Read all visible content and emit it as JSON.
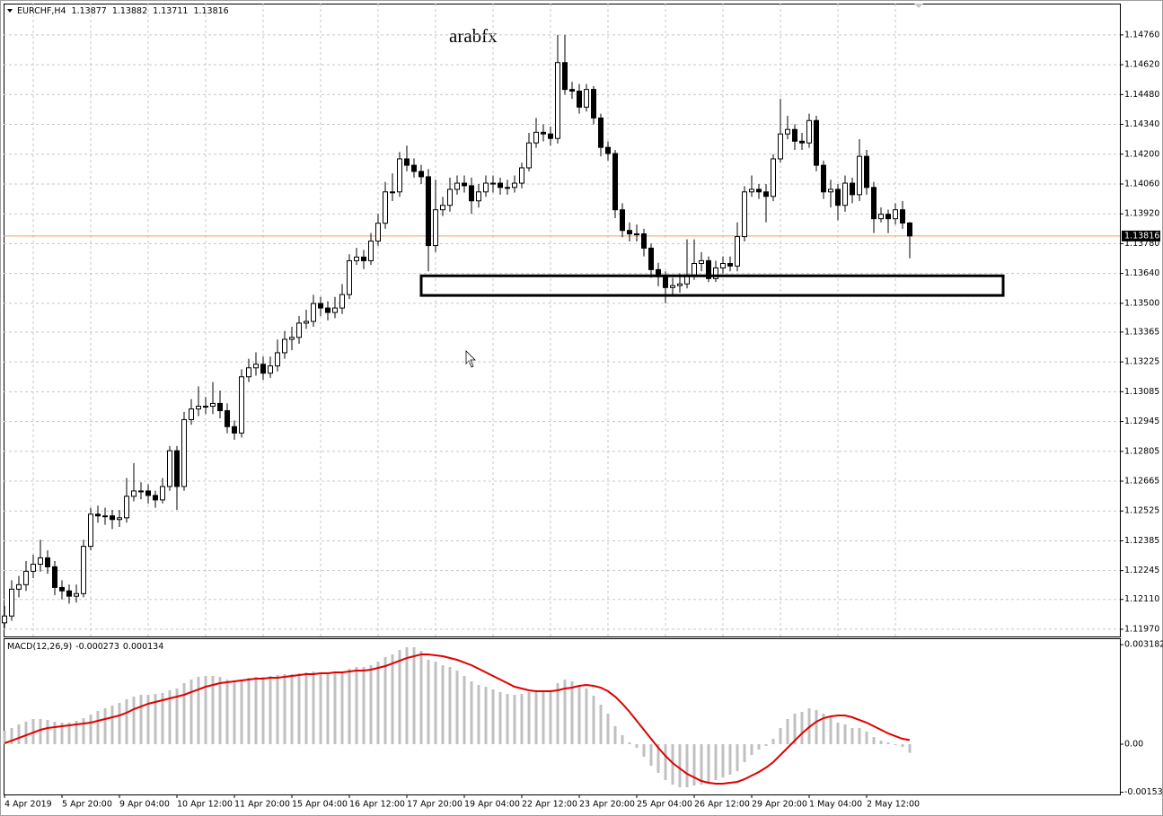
{
  "chart_data": [
    {
      "type": "candlestick",
      "title": "EURCHF,H4",
      "annotation": "arabfx",
      "categories": [
        "4 Apr 2019",
        null,
        null,
        null,
        null,
        null,
        null,
        null,
        "5 Apr 20:00",
        null,
        null,
        null,
        null,
        null,
        null,
        null,
        "9 Apr 04:00",
        null,
        null,
        null,
        null,
        null,
        null,
        null,
        "10 Apr 12:00",
        null,
        null,
        null,
        null,
        null,
        null,
        null,
        "11 Apr 20:00",
        null,
        null,
        null,
        null,
        null,
        null,
        null,
        "15 Apr 04:00",
        null,
        null,
        null,
        null,
        null,
        null,
        null,
        "16 Apr 12:00",
        null,
        null,
        null,
        null,
        null,
        null,
        null,
        "17 Apr 20:00",
        null,
        null,
        null,
        null,
        null,
        null,
        null,
        "19 Apr 04:00",
        null,
        null,
        null,
        null,
        null,
        null,
        null,
        "22 Apr 12:00",
        null,
        null,
        null,
        null,
        null,
        null,
        null,
        "23 Apr 20:00",
        null,
        null,
        null,
        null,
        null,
        null,
        null,
        "25 Apr 04:00",
        null,
        null,
        null,
        null,
        null,
        null,
        null,
        "26 Apr 12:00",
        null,
        null,
        null,
        null,
        null,
        null,
        null,
        "29 Apr 20:00",
        null,
        null,
        null,
        null,
        null,
        null,
        null,
        "1 May 04:00",
        null,
        null,
        null,
        null,
        null,
        null,
        null,
        "2 May 12:00",
        null,
        null,
        null,
        null,
        null,
        null
      ],
      "open": [
        1.12,
        1.12032,
        1.12158,
        1.12179,
        1.12242,
        1.12275,
        1.12305,
        1.12263,
        1.12166,
        1.1215,
        1.12125,
        1.12137,
        1.12359,
        1.1251,
        1.12502,
        1.12502,
        1.12485,
        1.12493,
        1.12594,
        1.12619,
        1.12619,
        1.12598,
        1.12577,
        1.1264,
        1.12808,
        1.1264,
        1.12954,
        1.13004,
        1.13017,
        1.13017,
        1.1303,
        1.12996,
        1.12921,
        1.12891,
        1.13155,
        1.13197,
        1.13214,
        1.13172,
        1.13206,
        1.13268,
        1.13331,
        1.1334,
        1.13407,
        1.13415,
        1.13499,
        1.13478,
        1.13457,
        1.13478,
        1.13541,
        1.137,
        1.13717,
        1.137,
        1.13792,
        1.13876,
        1.14023,
        1.14023,
        1.14178,
        1.14148,
        1.14119,
        1.14094,
        1.13771,
        1.13939,
        1.1396,
        1.14035,
        1.14064,
        1.14052,
        1.13981,
        1.14023,
        1.14064,
        1.14064,
        1.14044,
        1.14044,
        1.14064,
        1.14136,
        1.14253,
        1.14303,
        1.14295,
        1.14274,
        1.1463,
        1.14504,
        1.14496,
        1.14421,
        1.14504,
        1.1437,
        1.14232,
        1.14203,
        1.13939,
        1.13842,
        1.13826,
        1.13826,
        1.13759,
        1.13658,
        1.13625,
        1.13574,
        1.13583,
        1.13591,
        1.13633,
        1.13687,
        1.137,
        1.13616,
        1.13666,
        1.13687,
        1.13675,
        1.13813,
        1.14023,
        1.14035,
        1.14023,
        1.14002,
        1.14178,
        1.14295,
        1.14316,
        1.14261,
        1.14253,
        1.14358,
        1.14148,
        1.14023,
        1.14035,
        1.1396,
        1.14064,
        1.1401,
        1.1419,
        1.14044,
        1.13897,
        1.13918,
        1.13897,
        1.13939,
        1.13877
      ],
      "high": [
        1.1208,
        1.122,
        1.1222,
        1.1229,
        1.1232,
        1.1239,
        1.1234,
        1.1229,
        1.122,
        1.1218,
        1.1218,
        1.1239,
        1.1254,
        1.1255,
        1.1254,
        1.1253,
        1.1253,
        1.1268,
        1.1275,
        1.1266,
        1.1265,
        1.1262,
        1.1268,
        1.1283,
        1.1283,
        1.1299,
        1.1305,
        1.1311,
        1.1306,
        1.1313,
        1.1309,
        1.1303,
        1.1295,
        1.1319,
        1.1324,
        1.1327,
        1.1325,
        1.1325,
        1.1333,
        1.1337,
        1.1339,
        1.1344,
        1.1347,
        1.1354,
        1.1353,
        1.1351,
        1.1353,
        1.1359,
        1.1373,
        1.1376,
        1.1375,
        1.1383,
        1.1392,
        1.1407,
        1.1411,
        1.1421,
        1.1424,
        1.1418,
        1.1415,
        1.1413,
        1.1408,
        1.14,
        1.1409,
        1.141,
        1.141,
        1.1409,
        1.1406,
        1.141,
        1.141,
        1.1409,
        1.1408,
        1.141,
        1.1416,
        1.143,
        1.1437,
        1.1434,
        1.1433,
        1.1476,
        1.1476,
        1.1454,
        1.1453,
        1.1453,
        1.1452,
        1.1439,
        1.1426,
        1.1422,
        1.1397,
        1.1388,
        1.1387,
        1.1385,
        1.1378,
        1.1369,
        1.1365,
        1.1362,
        1.1364,
        1.138,
        1.138,
        1.1374,
        1.1372,
        1.137,
        1.1372,
        1.1372,
        1.1388,
        1.1405,
        1.141,
        1.1406,
        1.1406,
        1.142,
        1.1446,
        1.1438,
        1.1434,
        1.143,
        1.1439,
        1.1438,
        1.1417,
        1.1408,
        1.1406,
        1.141,
        1.1409,
        1.1427,
        1.1422,
        1.1407,
        1.1395,
        1.1394,
        1.1397,
        1.1398,
        1.13882
      ],
      "low": [
        1.11975,
        1.1201,
        1.1212,
        1.1215,
        1.1221,
        1.1224,
        1.1223,
        1.1213,
        1.1211,
        1.1209,
        1.12095,
        1.1212,
        1.1234,
        1.1247,
        1.1246,
        1.1244,
        1.1245,
        1.1247,
        1.1257,
        1.1258,
        1.1256,
        1.1254,
        1.1256,
        1.1262,
        1.1253,
        1.1262,
        1.1293,
        1.1297,
        1.1298,
        1.1298,
        1.1296,
        1.1289,
        1.1286,
        1.1287,
        1.1313,
        1.1316,
        1.1314,
        1.1315,
        1.1318,
        1.1324,
        1.1328,
        1.1331,
        1.1338,
        1.1339,
        1.1344,
        1.1342,
        1.1343,
        1.1345,
        1.1352,
        1.1368,
        1.1366,
        1.1368,
        1.1377,
        1.1385,
        1.1398,
        1.14,
        1.1412,
        1.1409,
        1.1406,
        1.1365,
        1.1374,
        1.1391,
        1.1393,
        1.1401,
        1.1402,
        1.1392,
        1.1395,
        1.14,
        1.1402,
        1.1401,
        1.1401,
        1.1402,
        1.1404,
        1.1412,
        1.1423,
        1.1426,
        1.1424,
        1.1425,
        1.1448,
        1.1446,
        1.1439,
        1.144,
        1.1434,
        1.1419,
        1.1417,
        1.139,
        1.1381,
        1.1379,
        1.1379,
        1.1372,
        1.1362,
        1.1358,
        1.135,
        1.1354,
        1.1355,
        1.1357,
        1.1361,
        1.1365,
        1.136,
        1.136,
        1.1364,
        1.1365,
        1.1365,
        1.1379,
        1.14,
        1.1399,
        1.1388,
        1.1398,
        1.1416,
        1.1427,
        1.1422,
        1.1422,
        1.1423,
        1.1412,
        1.1399,
        1.1395,
        1.1389,
        1.1393,
        1.1397,
        1.1398,
        1.1401,
        1.1383,
        1.1388,
        1.1383,
        1.1387,
        1.1385,
        1.13711
      ],
      "close": [
        1.12032,
        1.12158,
        1.12179,
        1.12242,
        1.12275,
        1.12305,
        1.12263,
        1.12166,
        1.1215,
        1.12125,
        1.12137,
        1.12359,
        1.1251,
        1.12502,
        1.12502,
        1.12485,
        1.12493,
        1.12594,
        1.12619,
        1.12619,
        1.12598,
        1.12577,
        1.1264,
        1.12808,
        1.1264,
        1.12954,
        1.13004,
        1.13017,
        1.13017,
        1.1303,
        1.12996,
        1.12921,
        1.12891,
        1.13155,
        1.13197,
        1.13214,
        1.13172,
        1.13206,
        1.13268,
        1.13331,
        1.1334,
        1.13407,
        1.13415,
        1.13499,
        1.13478,
        1.13457,
        1.13478,
        1.13541,
        1.137,
        1.13717,
        1.137,
        1.13792,
        1.13876,
        1.14023,
        1.14023,
        1.14178,
        1.14148,
        1.14119,
        1.14094,
        1.13771,
        1.13939,
        1.1396,
        1.14035,
        1.14064,
        1.14052,
        1.13981,
        1.14023,
        1.14064,
        1.14064,
        1.14044,
        1.14044,
        1.14064,
        1.14136,
        1.14253,
        1.14303,
        1.14295,
        1.14274,
        1.1463,
        1.14504,
        1.14496,
        1.14421,
        1.14504,
        1.1437,
        1.14232,
        1.14203,
        1.13939,
        1.13842,
        1.13826,
        1.13826,
        1.13759,
        1.13658,
        1.13625,
        1.13574,
        1.13583,
        1.13591,
        1.13633,
        1.13687,
        1.137,
        1.13616,
        1.13666,
        1.13687,
        1.13675,
        1.13813,
        1.14023,
        1.14035,
        1.14023,
        1.14002,
        1.14178,
        1.14295,
        1.14316,
        1.14261,
        1.14253,
        1.14358,
        1.14148,
        1.14023,
        1.14035,
        1.1396,
        1.14064,
        1.1401,
        1.1419,
        1.14044,
        1.13897,
        1.13918,
        1.13897,
        1.13939,
        1.13877,
        1.13816
      ],
      "up_color": "#ffffff",
      "down_color": "#000000",
      "price_line_color": "#f0a060",
      "ylim": [
        1.11936,
        1.14907
      ],
      "yticks": [
        {
          "value": 1.1476,
          "label": "1.14760"
        },
        {
          "value": 1.1462,
          "label": "1.14620"
        },
        {
          "value": 1.1448,
          "label": "1.14480"
        },
        {
          "value": 1.1434,
          "label": "1.14340"
        },
        {
          "value": 1.142,
          "label": "1.14200"
        },
        {
          "value": 1.1406,
          "label": "1.14060"
        },
        {
          "value": 1.1392,
          "label": "1.13920"
        },
        {
          "value": 1.1378,
          "label": "1.13780"
        },
        {
          "value": 1.1364,
          "label": "1.13640"
        },
        {
          "value": 1.135,
          "label": "1.13500"
        },
        1.13365,
        1.13225,
        1.13085,
        1.12945,
        1.12805,
        1.12665,
        1.12525,
        1.12385,
        1.12245,
        {
          "value": 1.1211,
          "label": "1.12110"
        },
        {
          "value": 1.1197,
          "label": "1.11970"
        }
      ],
      "grid": true,
      "zone": {
        "high": 1.13629,
        "low": 1.13537
      }
    },
    {
      "type": "macd",
      "title": "MACD(12,26,9)",
      "series": [
        {
          "color": "#c0c0c0",
          "values": [
            0.000431,
            0.000517,
            0.000631,
            0.000718,
            0.000804,
            0.000804,
            0.000775,
            0.000718,
            0.000689,
            0.000689,
            0.000746,
            0.000832,
            0.000947,
            0.001062,
            0.001148,
            0.001234,
            0.00132,
            0.001435,
            0.001521,
            0.001579,
            0.001579,
            0.001607,
            0.001636,
            0.001722,
            0.001779,
            0.001952,
            0.002066,
            0.002153,
            0.002181,
            0.002181,
            0.002153,
            0.002066,
            0.002009,
            0.002066,
            0.002124,
            0.002153,
            0.002153,
            0.002181,
            0.00221,
            0.002239,
            0.002239,
            0.002267,
            0.002296,
            0.002325,
            0.002296,
            0.002267,
            0.002267,
            0.002296,
            0.002411,
            0.002468,
            0.002468,
            0.002526,
            0.00264,
            0.002784,
            0.00287,
            0.003014,
            0.0031,
            0.0031,
            0.002985,
            0.002698,
            0.00264,
            0.002526,
            0.002468,
            0.002353,
            0.002181,
            0.002009,
            0.001894,
            0.001837,
            0.001751,
            0.001665,
            0.001607,
            0.001579,
            0.001607,
            0.001665,
            0.001722,
            0.001722,
            0.001722,
            0.001952,
            0.002066,
            0.002009,
            0.001894,
            0.001779,
            0.00155,
            0.001263,
            0.000976,
            0.000574,
            0.000287,
            5.7e-05,
            -0.000115,
            -0.000402,
            -0.000689,
            -0.000918,
            -0.001148,
            -0.001292,
            -0.001378,
            -0.001378,
            -0.00132,
            -0.001292,
            -0.001263,
            -0.001148,
            -0.001062,
            -0.000976,
            -0.000861,
            -0.000574,
            -0.000344,
            -0.000172,
            -5.7e-05,
            0.000172,
            0.000517,
            0.000804,
            0.000976,
            0.001033,
            0.001148,
            0.001091,
            0.000976,
            0.000861,
            0.000689,
            0.000631,
            0.000517,
            0.000517,
            0.000402,
            0.00023,
            0.000115,
            5.7e-05,
            -2.9e-05,
            -8.6e-05,
            -0.000273
          ]
        },
        {
          "color": "#e00000",
          "values": [
            2.9e-05,
            0.000115,
            0.000201,
            0.000287,
            0.000373,
            0.000459,
            0.000517,
            0.000545,
            0.000574,
            0.000603,
            0.000631,
            0.00066,
            0.000689,
            0.000746,
            0.000804,
            0.000861,
            0.000918,
            0.001005,
            0.001119,
            0.001205,
            0.001292,
            0.001349,
            0.001406,
            0.001464,
            0.001521,
            0.001579,
            0.001665,
            0.001751,
            0.001837,
            0.001894,
            0.001952,
            0.00198,
            0.002009,
            0.002038,
            0.002066,
            0.002095,
            0.002095,
            0.002124,
            0.002124,
            0.002153,
            0.002181,
            0.00221,
            0.002239,
            0.002239,
            0.002267,
            0.002267,
            0.002296,
            0.002296,
            0.002325,
            0.002353,
            0.002353,
            0.002382,
            0.00244,
            0.002497,
            0.002583,
            0.002669,
            0.002755,
            0.002813,
            0.00287,
            0.00287,
            0.002841,
            0.002813,
            0.002755,
            0.002698,
            0.002612,
            0.002526,
            0.002411,
            0.002296,
            0.002181,
            0.002066,
            0.001952,
            0.001837,
            0.001779,
            0.001722,
            0.001693,
            0.001693,
            0.001693,
            0.001722,
            0.001779,
            0.001808,
            0.001866,
            0.001894,
            0.001866,
            0.001808,
            0.001693,
            0.001521,
            0.001292,
            0.001033,
            0.000746,
            0.000459,
            0.000172,
            -0.000115,
            -0.000373,
            -0.000603,
            -0.000775,
            -0.000947,
            -0.001062,
            -0.001177,
            -0.001234,
            -0.001263,
            -0.001263,
            -0.001234,
            -0.001205,
            -0.001119,
            -0.001005,
            -0.00089,
            -0.000746,
            -0.000574,
            -0.000344,
            -0.000115,
            0.000115,
            0.000344,
            0.000545,
            0.000718,
            0.000832,
            0.00089,
            0.000918,
            0.000918,
            0.000861,
            0.000775,
            0.000689,
            0.000574,
            0.000459,
            0.000345,
            0.000258,
            0.000172,
            0.000134
          ]
        }
      ],
      "ylim": [
        -0.001607,
        0.003387
      ],
      "yticks": [
        0.003182,
        {
          "value": 0,
          "label": "0.00"
        },
        -0.001537
      ]
    }
  ]
}
